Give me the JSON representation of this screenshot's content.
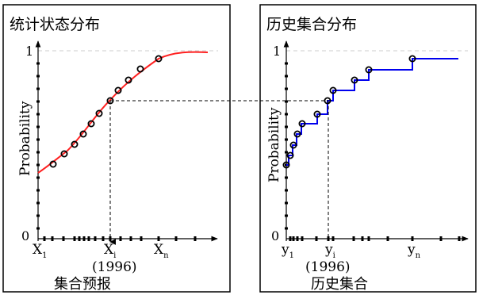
{
  "colors": {
    "frame": "#000000",
    "left_curve": "#ff2020",
    "right_curve": "#0000ee",
    "grid": "#cccccc",
    "marker": "#000000"
  },
  "left_panel": {
    "title": "统计状态分布",
    "ylabel": "Probability",
    "y_top": "1",
    "y_origin": "0",
    "x_first": "X",
    "x_first_sub": "1",
    "x_mid": "X",
    "x_mid_sub": "i",
    "x_mid_year": "(1996)",
    "x_last": "X",
    "x_last_sub": "n",
    "caption": "集合预报"
  },
  "right_panel": {
    "title": "历史集合分布",
    "ylabel": "Probability",
    "y_top": "1",
    "y_origin": "0",
    "x_first": "y",
    "x_first_sub": "1",
    "x_mid": "y",
    "x_mid_sub": "i",
    "x_mid_year": "(1996)",
    "x_last": "y",
    "x_last_sub": "n",
    "caption": "历史集合"
  }
}
